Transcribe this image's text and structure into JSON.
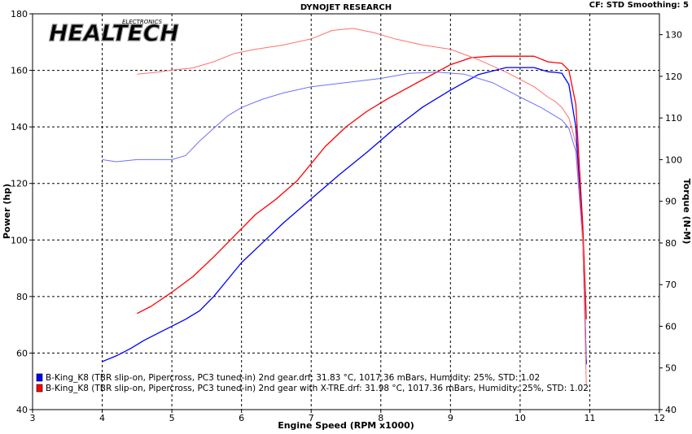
{
  "header": {
    "title": "DYNOJET RESEARCH",
    "conditions": "CF: STD   Smoothing: 5"
  },
  "logo": {
    "text": "HEALTECH",
    "subtext": "ELECTRONICS"
  },
  "chart_data": {
    "type": "line",
    "xlabel": "Engine Speed (RPM x1000)",
    "ylabel_left": "Power (hp)",
    "ylabel_right": "Torque (N-M)",
    "xlim": [
      3,
      12
    ],
    "ylim_left": [
      40,
      180
    ],
    "ylim_right": [
      40,
      135
    ],
    "x_ticks": [
      3,
      4,
      5,
      6,
      7,
      8,
      9,
      10,
      11,
      12
    ],
    "y_left_ticks": [
      40,
      60,
      80,
      100,
      120,
      140,
      160,
      180
    ],
    "y_right_ticks": [
      40,
      50,
      60,
      70,
      80,
      90,
      100,
      110,
      120,
      130
    ],
    "grid": true,
    "legend_position": "bottom-left",
    "legend": [
      {
        "color": "#0000ff",
        "label": "B-King_K8 (TBR slip-on, Pipercross, PC3 tuned-in) 2nd gear.drf: 31.83 °C, 1017.36 mBars, Humidity: 25%, STD: 1.02"
      },
      {
        "color": "#ff0000",
        "label": "B-King_K8 (TBR slip-on, Pipercross, PC3 tuned-in) 2nd gear with X-TRE.drf: 31.98 °C, 1017.36 mBars, Humidity: 25%, STD: 1.02"
      }
    ],
    "series": [
      {
        "color": "#0000ff",
        "axis": "left",
        "kind": "power",
        "x": [
          4.0,
          4.2,
          4.4,
          4.6,
          4.8,
          5.0,
          5.2,
          5.4,
          5.6,
          5.8,
          6.0,
          6.3,
          6.6,
          7.0,
          7.4,
          7.8,
          8.2,
          8.6,
          9.0,
          9.4,
          9.8,
          10.2,
          10.4,
          10.5,
          10.6,
          10.7,
          10.8,
          10.9,
          10.95
        ],
        "y": [
          57,
          59,
          61.5,
          64.5,
          67,
          69.5,
          72,
          75,
          80,
          86,
          92,
          99,
          106,
          114.5,
          123,
          131,
          139.5,
          147,
          153,
          158.5,
          161,
          161,
          159.5,
          159.3,
          159,
          155,
          140,
          100,
          56
        ]
      },
      {
        "color": "#ff0000",
        "axis": "left",
        "kind": "power",
        "x": [
          4.5,
          4.7,
          5.0,
          5.3,
          5.6,
          5.9,
          6.2,
          6.5,
          6.8,
          7.0,
          7.2,
          7.5,
          7.8,
          8.1,
          8.4,
          8.7,
          9.0,
          9.3,
          9.6,
          9.9,
          10.2,
          10.4,
          10.6,
          10.7,
          10.8,
          10.9,
          10.95
        ],
        "y": [
          74,
          76.5,
          81.5,
          87,
          94,
          101.5,
          109,
          114.5,
          121,
          127,
          133,
          140,
          145.5,
          150,
          154,
          158,
          162,
          164.5,
          165,
          165,
          165,
          163,
          162.5,
          160,
          148,
          105,
          72
        ]
      },
      {
        "color": "#6f6fff",
        "axis": "right",
        "kind": "torque",
        "x": [
          4.0,
          4.2,
          4.5,
          4.8,
          5.0,
          5.2,
          5.4,
          5.6,
          5.8,
          6.0,
          6.3,
          6.6,
          7.0,
          7.5,
          8.0,
          8.4,
          8.8,
          9.2,
          9.6,
          10.0,
          10.3,
          10.5,
          10.6,
          10.7,
          10.8,
          10.9,
          10.95
        ],
        "y": [
          100,
          99.5,
          100,
          100,
          100,
          101,
          104.5,
          107.5,
          110.5,
          112.5,
          114.5,
          116,
          117.5,
          118.5,
          119.5,
          120.7,
          121,
          120.5,
          118.5,
          115,
          112.5,
          110.5,
          109.5,
          107.5,
          102,
          80,
          52
        ]
      },
      {
        "color": "#ff7070",
        "axis": "right",
        "kind": "torque",
        "x": [
          4.5,
          4.8,
          5.0,
          5.3,
          5.6,
          5.9,
          6.2,
          6.6,
          7.0,
          7.3,
          7.6,
          7.9,
          8.2,
          8.6,
          9.0,
          9.4,
          9.8,
          10.2,
          10.4,
          10.5,
          10.6,
          10.7,
          10.8,
          10.9,
          10.95
        ],
        "y": [
          120.5,
          121,
          121.5,
          122,
          123.5,
          125.5,
          126.5,
          127.5,
          129,
          131,
          131.5,
          130.5,
          129,
          127.5,
          126.5,
          124,
          121,
          117.5,
          115,
          114,
          112.5,
          110,
          104,
          80,
          46
        ]
      }
    ]
  }
}
